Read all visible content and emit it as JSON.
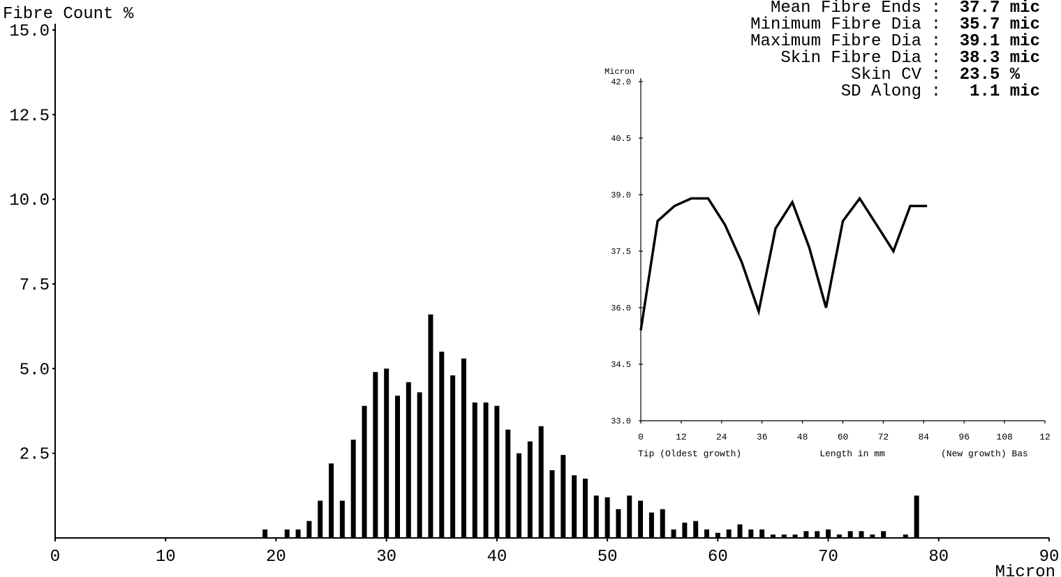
{
  "stats": [
    {
      "label": "Mean Fibre Ends",
      "value": "37.7",
      "unit": "mic"
    },
    {
      "label": "Minimum Fibre Dia",
      "value": "35.7",
      "unit": "mic"
    },
    {
      "label": "Maximum Fibre Dia",
      "value": "39.1",
      "unit": "mic"
    },
    {
      "label": "Skin Fibre Dia",
      "value": "38.3",
      "unit": "mic"
    },
    {
      "label": "Skin CV",
      "value": "23.5",
      "unit": "%"
    },
    {
      "label": "SD Along",
      "value": "1.1",
      "unit": "mic"
    }
  ],
  "chart_data": [
    {
      "type": "bar",
      "ylabel": "Fibre Count %",
      "xlabel": "Micron",
      "xlim": [
        0,
        90
      ],
      "ylim": [
        0,
        15
      ],
      "xticks": [
        "0",
        "10",
        "20",
        "30",
        "40",
        "50",
        "60",
        "70",
        "80",
        "90"
      ],
      "yticks": [
        "2.5",
        "5.0",
        "7.5",
        "10.0",
        "12.5",
        "15.0"
      ],
      "x": [
        19,
        21,
        22,
        23,
        24,
        25,
        26,
        27,
        28,
        29,
        30,
        31,
        32,
        33,
        34,
        35,
        36,
        37,
        38,
        39,
        40,
        41,
        42,
        43,
        44,
        45,
        46,
        47,
        48,
        49,
        50,
        51,
        52,
        53,
        54,
        55,
        56,
        57,
        58,
        59,
        60,
        61,
        62,
        63,
        64,
        65,
        66,
        67,
        68,
        69,
        70,
        71,
        72,
        73,
        74,
        75,
        77,
        78
      ],
      "values": [
        0.25,
        0.25,
        0.25,
        0.5,
        1.1,
        2.2,
        1.1,
        2.9,
        3.9,
        4.9,
        5.0,
        4.2,
        4.6,
        4.3,
        6.6,
        5.5,
        4.8,
        5.3,
        4.0,
        4.0,
        3.9,
        3.2,
        2.5,
        2.85,
        3.3,
        2.0,
        2.45,
        1.85,
        1.75,
        1.25,
        1.2,
        0.85,
        1.25,
        1.1,
        0.75,
        0.85,
        0.25,
        0.45,
        0.5,
        0.25,
        0.15,
        0.25,
        0.4,
        0.25,
        0.25,
        0.1,
        0.1,
        0.1,
        0.2,
        0.2,
        0.25,
        0.1,
        0.2,
        0.2,
        0.1,
        0.2,
        0.1,
        1.25
      ]
    },
    {
      "type": "line",
      "ylabel": "Micron",
      "xlabel": "Length in mm",
      "x_left_caption": "Tip (Oldest growth)",
      "x_right_caption": "(New growth) Bas",
      "xlim": [
        0,
        120
      ],
      "ylim": [
        33.0,
        42.0
      ],
      "xticks": [
        "0",
        "12",
        "24",
        "36",
        "48",
        "60",
        "72",
        "84",
        "96",
        "108",
        "12"
      ],
      "yticks": [
        "33.0",
        "34.5",
        "36.0",
        "37.5",
        "39.0",
        "40.5",
        "42.0"
      ],
      "x": [
        0,
        5,
        10,
        15,
        20,
        25,
        30,
        35,
        40,
        45,
        50,
        55,
        60,
        65,
        70,
        75,
        80,
        85
      ],
      "y": [
        35.4,
        38.3,
        38.7,
        38.9,
        38.9,
        38.2,
        37.2,
        35.9,
        38.1,
        38.8,
        37.6,
        36.0,
        38.3,
        38.9,
        38.2,
        37.5,
        38.7,
        38.7
      ]
    }
  ]
}
